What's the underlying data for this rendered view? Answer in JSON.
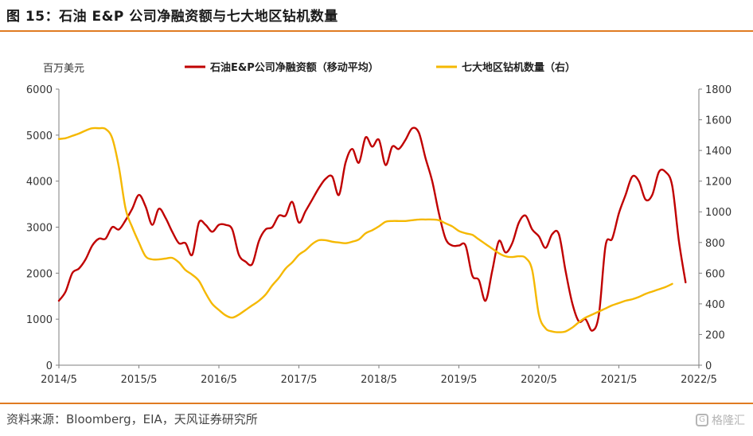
{
  "figure": {
    "title": "图 15：石油 E&P 公司净融资额与七大地区钻机数量",
    "source": "资料来源：Bloomberg，EIA，天风证券研究所",
    "watermark": "格隆汇"
  },
  "chart_data": {
    "type": "line",
    "ylabel_left": "百万美元",
    "ylim_left": [
      0,
      6000
    ],
    "yticks_left": [
      "0",
      "1000",
      "2000",
      "3000",
      "4000",
      "5000",
      "6000"
    ],
    "ylim_right": [
      0,
      1800
    ],
    "yticks_right": [
      "0",
      "200",
      "400",
      "600",
      "800",
      "1000",
      "1200",
      "1400",
      "1600",
      "1800"
    ],
    "xlim": [
      "2014/5",
      "2022/5"
    ],
    "xticks": [
      "2014/5",
      "2015/5",
      "2016/5",
      "2017/5",
      "2018/5",
      "2019/5",
      "2020/5",
      "2021/5",
      "2022/5"
    ],
    "legend_position": "top",
    "grid": false,
    "series": [
      {
        "name": "石油E&P公司净融资额（移动平均）",
        "color": "#c00000",
        "axis": "left",
        "points": [
          [
            "2014/5",
            1400
          ],
          [
            "2014/6",
            1600
          ],
          [
            "2014/7",
            2000
          ],
          [
            "2014/8",
            2100
          ],
          [
            "2014/9",
            2300
          ],
          [
            "2014/10",
            2600
          ],
          [
            "2014/11",
            2750
          ],
          [
            "2014/12",
            2750
          ],
          [
            "2015/1",
            3000
          ],
          [
            "2015/2",
            2950
          ],
          [
            "2015/3",
            3150
          ],
          [
            "2015/4",
            3400
          ],
          [
            "2015/5",
            3700
          ],
          [
            "2015/6",
            3450
          ],
          [
            "2015/7",
            3050
          ],
          [
            "2015/8",
            3400
          ],
          [
            "2015/9",
            3200
          ],
          [
            "2015/10",
            2900
          ],
          [
            "2015/11",
            2650
          ],
          [
            "2015/12",
            2650
          ],
          [
            "2016/1",
            2400
          ],
          [
            "2016/2",
            3100
          ],
          [
            "2016/3",
            3050
          ],
          [
            "2016/4",
            2900
          ],
          [
            "2016/5",
            3050
          ],
          [
            "2016/6",
            3050
          ],
          [
            "2016/7",
            2950
          ],
          [
            "2016/8",
            2400
          ],
          [
            "2016/9",
            2250
          ],
          [
            "2016/10",
            2200
          ],
          [
            "2016/11",
            2700
          ],
          [
            "2016/12",
            2950
          ],
          [
            "2017/1",
            3000
          ],
          [
            "2017/2",
            3250
          ],
          [
            "2017/3",
            3250
          ],
          [
            "2017/4",
            3550
          ],
          [
            "2017/5",
            3100
          ],
          [
            "2017/6",
            3350
          ],
          [
            "2017/7",
            3600
          ],
          [
            "2017/8",
            3850
          ],
          [
            "2017/9",
            4050
          ],
          [
            "2017/10",
            4100
          ],
          [
            "2017/11",
            3700
          ],
          [
            "2017/12",
            4400
          ],
          [
            "2018/1",
            4700
          ],
          [
            "2018/2",
            4400
          ],
          [
            "2018/3",
            4950
          ],
          [
            "2018/4",
            4750
          ],
          [
            "2018/5",
            4900
          ],
          [
            "2018/6",
            4350
          ],
          [
            "2018/7",
            4750
          ],
          [
            "2018/8",
            4700
          ],
          [
            "2018/9",
            4900
          ],
          [
            "2018/10",
            5150
          ],
          [
            "2018/11",
            5050
          ],
          [
            "2018/12",
            4500
          ],
          [
            "2019/1",
            4000
          ],
          [
            "2019/2",
            3300
          ],
          [
            "2019/3",
            2750
          ],
          [
            "2019/4",
            2600
          ],
          [
            "2019/5",
            2600
          ],
          [
            "2019/6",
            2600
          ],
          [
            "2019/7",
            1950
          ],
          [
            "2019/8",
            1850
          ],
          [
            "2019/9",
            1400
          ],
          [
            "2019/10",
            2050
          ],
          [
            "2019/11",
            2700
          ],
          [
            "2019/12",
            2450
          ],
          [
            "2020/1",
            2650
          ],
          [
            "2020/2",
            3100
          ],
          [
            "2020/3",
            3250
          ],
          [
            "2020/4",
            2950
          ],
          [
            "2020/5",
            2800
          ],
          [
            "2020/6",
            2550
          ],
          [
            "2020/7",
            2850
          ],
          [
            "2020/8",
            2850
          ],
          [
            "2020/9",
            2050
          ],
          [
            "2020/10",
            1350
          ],
          [
            "2020/11",
            950
          ],
          [
            "2020/12",
            1000
          ],
          [
            "2021/1",
            750
          ],
          [
            "2021/2",
            1100
          ],
          [
            "2021/3",
            2600
          ],
          [
            "2021/4",
            2750
          ],
          [
            "2021/5",
            3300
          ],
          [
            "2021/6",
            3700
          ],
          [
            "2021/7",
            4100
          ],
          [
            "2021/8",
            4000
          ],
          [
            "2021/9",
            3600
          ],
          [
            "2021/10",
            3700
          ],
          [
            "2021/11",
            4200
          ],
          [
            "2021/12",
            4200
          ],
          [
            "2022/1",
            3900
          ],
          [
            "2022/2",
            2700
          ],
          [
            "2022/3",
            1800
          ]
        ]
      },
      {
        "name": "七大地区钻机数量（右）",
        "color": "#f5b800",
        "axis": "right",
        "points": [
          [
            "2014/5",
            1475
          ],
          [
            "2014/6",
            1480
          ],
          [
            "2014/7",
            1495
          ],
          [
            "2014/8",
            1510
          ],
          [
            "2014/9",
            1530
          ],
          [
            "2014/10",
            1545
          ],
          [
            "2014/11",
            1545
          ],
          [
            "2014/12",
            1540
          ],
          [
            "2015/1",
            1480
          ],
          [
            "2015/2",
            1290
          ],
          [
            "2015/3",
            1020
          ],
          [
            "2015/4",
            900
          ],
          [
            "2015/5",
            800
          ],
          [
            "2015/6",
            710
          ],
          [
            "2015/7",
            690
          ],
          [
            "2015/8",
            690
          ],
          [
            "2015/9",
            695
          ],
          [
            "2015/10",
            700
          ],
          [
            "2015/11",
            670
          ],
          [
            "2015/12",
            620
          ],
          [
            "2016/1",
            590
          ],
          [
            "2016/2",
            550
          ],
          [
            "2016/3",
            470
          ],
          [
            "2016/4",
            400
          ],
          [
            "2016/5",
            360
          ],
          [
            "2016/6",
            325
          ],
          [
            "2016/7",
            310
          ],
          [
            "2016/8",
            330
          ],
          [
            "2016/9",
            360
          ],
          [
            "2016/10",
            390
          ],
          [
            "2016/11",
            420
          ],
          [
            "2016/12",
            460
          ],
          [
            "2017/1",
            520
          ],
          [
            "2017/2",
            570
          ],
          [
            "2017/3",
            630
          ],
          [
            "2017/4",
            670
          ],
          [
            "2017/5",
            720
          ],
          [
            "2017/6",
            750
          ],
          [
            "2017/7",
            790
          ],
          [
            "2017/8",
            815
          ],
          [
            "2017/9",
            815
          ],
          [
            "2017/10",
            805
          ],
          [
            "2017/11",
            800
          ],
          [
            "2017/12",
            795
          ],
          [
            "2018/1",
            805
          ],
          [
            "2018/2",
            820
          ],
          [
            "2018/3",
            860
          ],
          [
            "2018/4",
            880
          ],
          [
            "2018/5",
            905
          ],
          [
            "2018/6",
            935
          ],
          [
            "2018/7",
            940
          ],
          [
            "2018/8",
            940
          ],
          [
            "2018/9",
            940
          ],
          [
            "2018/10",
            945
          ],
          [
            "2018/11",
            950
          ],
          [
            "2018/12",
            950
          ],
          [
            "2019/1",
            950
          ],
          [
            "2019/2",
            945
          ],
          [
            "2019/3",
            925
          ],
          [
            "2019/4",
            905
          ],
          [
            "2019/5",
            875
          ],
          [
            "2019/6",
            860
          ],
          [
            "2019/7",
            850
          ],
          [
            "2019/8",
            820
          ],
          [
            "2019/9",
            790
          ],
          [
            "2019/10",
            760
          ],
          [
            "2019/11",
            730
          ],
          [
            "2019/12",
            710
          ],
          [
            "2020/1",
            705
          ],
          [
            "2020/2",
            710
          ],
          [
            "2020/3",
            700
          ],
          [
            "2020/4",
            620
          ],
          [
            "2020/5",
            330
          ],
          [
            "2020/6",
            240
          ],
          [
            "2020/7",
            220
          ],
          [
            "2020/8",
            215
          ],
          [
            "2020/9",
            220
          ],
          [
            "2020/10",
            245
          ],
          [
            "2020/11",
            280
          ],
          [
            "2020/12",
            310
          ],
          [
            "2021/1",
            330
          ],
          [
            "2021/2",
            350
          ],
          [
            "2021/3",
            370
          ],
          [
            "2021/4",
            390
          ],
          [
            "2021/5",
            405
          ],
          [
            "2021/6",
            420
          ],
          [
            "2021/7",
            430
          ],
          [
            "2021/8",
            445
          ],
          [
            "2021/9",
            465
          ],
          [
            "2021/10",
            480
          ],
          [
            "2021/11",
            495
          ],
          [
            "2021/12",
            510
          ],
          [
            "2022/1",
            530
          ]
        ]
      }
    ]
  }
}
